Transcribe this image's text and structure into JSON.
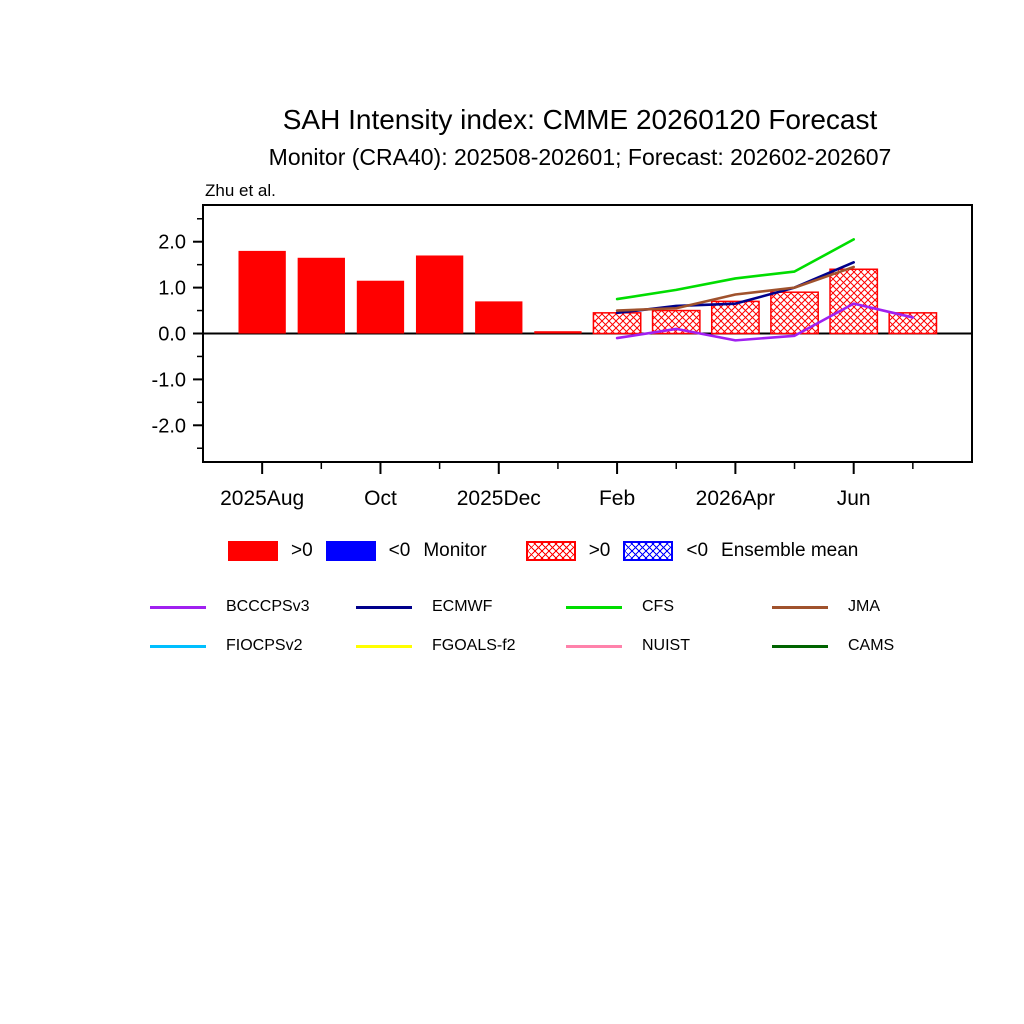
{
  "chart": {
    "title": "SAH Intensity index: CMME 20260120 Forecast",
    "subtitle": "Monitor (CRA40): 202508-202601; Forecast: 202602-202607",
    "annotation": "Zhu et al."
  },
  "chart_data": {
    "type": "bar",
    "ylim": [
      -2.8,
      2.8
    ],
    "yticks": [
      {
        "label": "2.0",
        "value": 2.0
      },
      {
        "label": "1.0",
        "value": 1.0
      },
      {
        "label": "0.0",
        "value": 0.0
      },
      {
        "label": "-1.0",
        "value": -1.0
      },
      {
        "label": "-2.0",
        "value": -2.0
      }
    ],
    "y_minor_step": 0.5,
    "x_axis": {
      "n_slots": 13,
      "month_indices": [
        1,
        2,
        3,
        4,
        5,
        6,
        7,
        8,
        9,
        10,
        11,
        12
      ],
      "tick_labels": [
        {
          "label": "2025Aug",
          "index": 1
        },
        {
          "label": "Oct",
          "index": 3
        },
        {
          "label": "2025Dec",
          "index": 5
        },
        {
          "label": "Feb",
          "index": 7
        },
        {
          "label": "2026Apr",
          "index": 9
        },
        {
          "label": "Jun",
          "index": 11
        }
      ]
    },
    "monitor_bars": {
      "name": "Monitor",
      "pos_color": "#FF0000",
      "neg_color": "#0000FF",
      "months": [
        "2025Aug",
        "2025Sep",
        "2025Oct",
        "2025Nov",
        "2025Dec",
        "2026Jan"
      ],
      "indices": [
        1,
        2,
        3,
        4,
        5,
        6
      ],
      "values": [
        1.8,
        1.65,
        1.15,
        1.7,
        0.7,
        0.05
      ]
    },
    "ensemble_bars": {
      "name": "Ensemble mean",
      "pos_color": "#FF0000",
      "neg_color": "#0000FF",
      "hatched": true,
      "months": [
        "2026Feb",
        "2026Mar",
        "2026Apr",
        "2026May",
        "2026Jun",
        "2026Jul"
      ],
      "indices": [
        7,
        8,
        9,
        10,
        11,
        12
      ],
      "values": [
        0.45,
        0.5,
        0.7,
        0.9,
        1.4,
        0.45
      ]
    },
    "model_lines": [
      {
        "name": "BCCCPSv3",
        "color": "#A020F0",
        "indices": [
          7,
          8,
          9,
          10,
          11,
          12
        ],
        "values": [
          -0.1,
          0.1,
          -0.15,
          -0.05,
          0.65,
          0.35
        ]
      },
      {
        "name": "ECMWF",
        "color": "#00008B",
        "indices": [
          7,
          8,
          9,
          10,
          11
        ],
        "values": [
          0.45,
          0.6,
          0.65,
          1.0,
          1.55
        ]
      },
      {
        "name": "CFS",
        "color": "#00DD00",
        "indices": [
          7,
          8,
          9,
          10,
          11
        ],
        "values": [
          0.75,
          0.95,
          1.2,
          1.35,
          2.05
        ]
      },
      {
        "name": "JMA",
        "color": "#A0522D",
        "indices": [
          7,
          8,
          9,
          10,
          11
        ],
        "values": [
          0.5,
          0.55,
          0.85,
          1.0,
          1.45
        ]
      }
    ]
  },
  "legend": {
    "bar_legend": {
      "monitor": {
        "pos": ">0",
        "neg": "<0",
        "label": "Monitor",
        "pos_color": "#FF0000",
        "neg_color": "#0000FF"
      },
      "ensemble": {
        "pos": ">0",
        "neg": "<0",
        "label": "Ensemble mean",
        "pos_color": "#FF0000",
        "neg_color": "#0000FF"
      }
    },
    "models": [
      {
        "name": "BCCCPSv3",
        "color": "#A020F0"
      },
      {
        "name": "ECMWF",
        "color": "#00008B"
      },
      {
        "name": "CFS",
        "color": "#00DD00"
      },
      {
        "name": "JMA",
        "color": "#A0522D"
      },
      {
        "name": "FIOCPSv2",
        "color": "#00BFFF"
      },
      {
        "name": "FGOALS-f2",
        "color": "#FFFF00"
      },
      {
        "name": "NUIST",
        "color": "#FF82AB"
      },
      {
        "name": "CAMS",
        "color": "#006400"
      }
    ]
  }
}
